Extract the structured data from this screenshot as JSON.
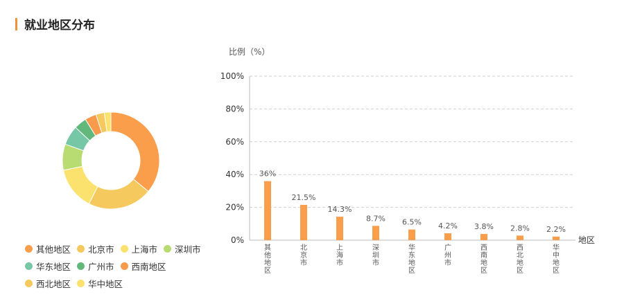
{
  "header": {
    "title": "就业地区分布"
  },
  "legend": {
    "items": [
      {
        "label": "其他地区",
        "color": "#fa9e4b"
      },
      {
        "label": "北京市",
        "color": "#f6c95e"
      },
      {
        "label": "上海市",
        "color": "#fbe26e"
      },
      {
        "label": "深圳市",
        "color": "#b8db72"
      },
      {
        "label": "华东地区",
        "color": "#75c7a6"
      },
      {
        "label": "广州市",
        "color": "#62b87a"
      },
      {
        "label": "西南地区",
        "color": "#f79a4c"
      },
      {
        "label": "西北地区",
        "color": "#f6c95e"
      },
      {
        "label": "华中地区",
        "color": "#fbe26e"
      }
    ]
  },
  "chart_data": [
    {
      "type": "pie",
      "donut": true,
      "labels": [
        "其他地区",
        "北京市",
        "上海市",
        "深圳市",
        "华东地区",
        "广州市",
        "西南地区",
        "西北地区",
        "华中地区"
      ],
      "values": [
        36,
        21.5,
        14.3,
        8.7,
        6.5,
        4.2,
        3.8,
        2.8,
        2.2
      ],
      "colors": [
        "#fa9e4b",
        "#f6c95e",
        "#fbe26e",
        "#b8db72",
        "#75c7a6",
        "#62b87a",
        "#f79a4c",
        "#f6c95e",
        "#fbe26e"
      ]
    },
    {
      "type": "bar",
      "categories": [
        "其他地区",
        "北京市",
        "上海市",
        "深圳市",
        "华东地区",
        "广州市",
        "西南地区",
        "西北地区",
        "华中地区"
      ],
      "values": [
        36,
        21.5,
        14.3,
        8.7,
        6.5,
        4.2,
        3.8,
        2.8,
        2.2
      ],
      "value_labels": [
        "36%",
        "21.5%",
        "14.3%",
        "8.7%",
        "6.5%",
        "4.2%",
        "3.8%",
        "2.8%",
        "2.2%"
      ],
      "ylabel": "比例（%）",
      "xlabel": "地区",
      "ylim": [
        0,
        100
      ],
      "yticks": [
        "0%",
        "20%",
        "40%",
        "60%",
        "80%",
        "100%"
      ],
      "grid": true,
      "bar_color": "#fa9e4b"
    }
  ]
}
